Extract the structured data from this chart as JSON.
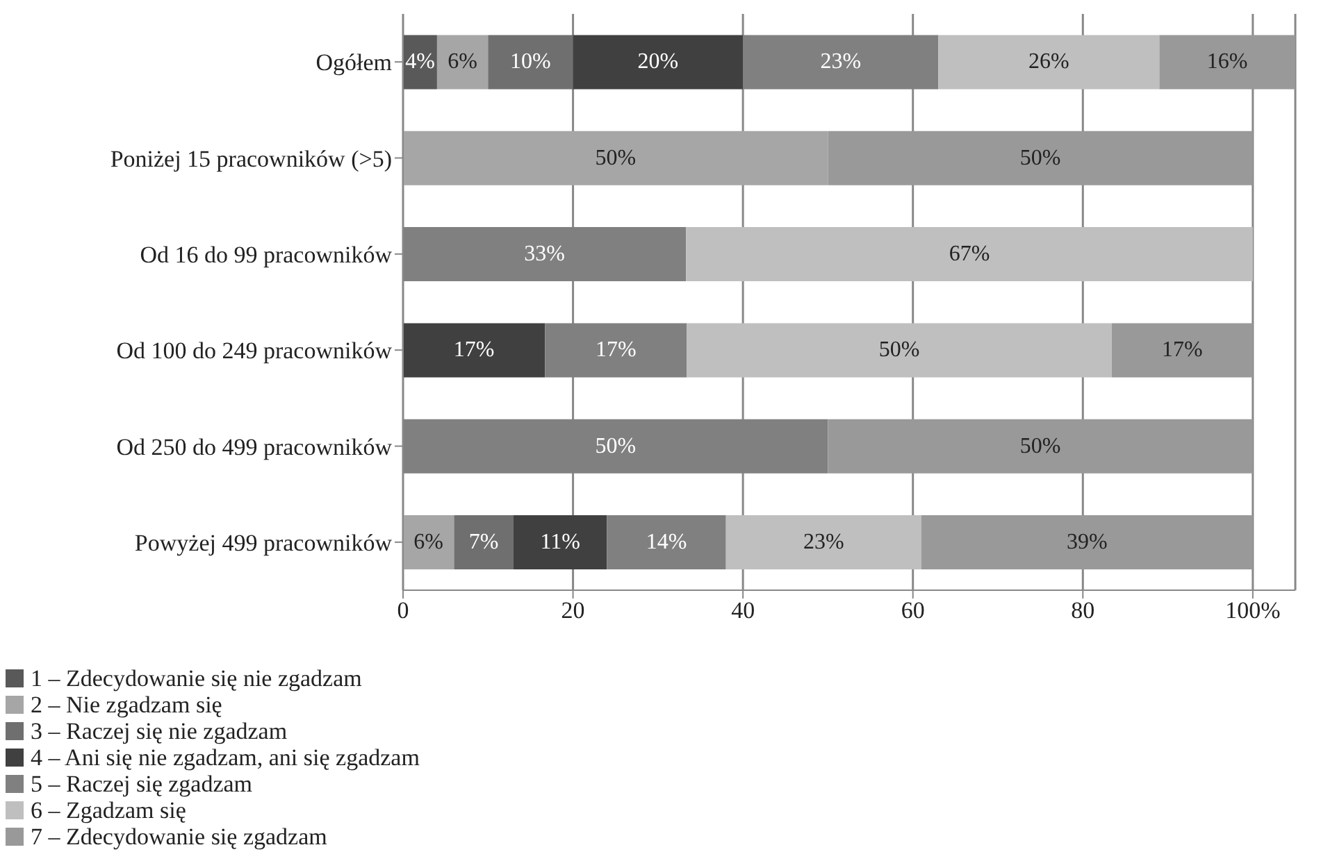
{
  "chart_data": {
    "type": "bar",
    "orientation": "horizontal",
    "stacked": true,
    "categories": [
      "Ogółem",
      "Poniżej 15 pracowników (>5)",
      "Od 16 do 99 pracowników",
      "Od 100 do 249 pracowników",
      "Od 250 do 499 pracowników",
      "Powyżej 499 pracowników"
    ],
    "series": [
      {
        "name": "1 – Zdecydowanie się nie zgadzam",
        "color": "#595959",
        "values": [
          4,
          null,
          null,
          null,
          null,
          null
        ],
        "value_labels": [
          "4%",
          null,
          null,
          null,
          null,
          null
        ]
      },
      {
        "name": "2 – Nie zgadzam się",
        "color": "#a6a6a6",
        "values": [
          6,
          50,
          null,
          null,
          null,
          6
        ],
        "value_labels": [
          "6%",
          "50%",
          null,
          null,
          null,
          "6%"
        ]
      },
      {
        "name": "3 – Raczej się nie zgadzam",
        "color": "#6f6f6f",
        "values": [
          10,
          null,
          null,
          null,
          null,
          7
        ],
        "value_labels": [
          "10%",
          null,
          null,
          null,
          null,
          "7%"
        ]
      },
      {
        "name": "4 – Ani się nie zgadzam, ani się zgadzam",
        "color": "#404040",
        "values": [
          20,
          null,
          null,
          16.7,
          null,
          11
        ],
        "value_labels": [
          "20%",
          null,
          null,
          "17%",
          null,
          "11%"
        ]
      },
      {
        "name": "5 – Raczej się zgadzam",
        "color": "#808080",
        "values": [
          23,
          null,
          33.3,
          16.7,
          50,
          14
        ],
        "value_labels": [
          "23%",
          null,
          "33%",
          "17%",
          "50%",
          "14%"
        ]
      },
      {
        "name": "6 – Zgadzam się",
        "color": "#bfbfbf",
        "values": [
          26,
          null,
          66.7,
          50,
          null,
          23
        ],
        "value_labels": [
          "26%",
          null,
          "67%",
          "50%",
          null,
          "23%"
        ]
      },
      {
        "name": "7 – Zdecydowanie się zgadzam",
        "color": "#999999",
        "values": [
          16,
          50,
          null,
          16.6,
          50,
          39
        ],
        "value_labels": [
          "16%",
          "50%",
          null,
          "17%",
          "50%",
          "39%"
        ]
      }
    ],
    "xlim": [
      0,
      105
    ],
    "xticks": [
      0,
      20,
      40,
      60,
      80,
      {
        "value": 100,
        "label": "100%"
      }
    ],
    "grid": "x",
    "legend": "bottom left"
  }
}
